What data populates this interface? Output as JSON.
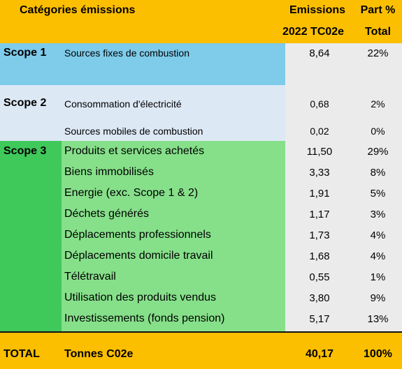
{
  "header": {
    "category_title": "Catégories émissions",
    "emissions_line1": "Emissions",
    "emissions_line2": "2022 TC02e",
    "share_line1": "Part %",
    "share_line2": "Total"
  },
  "scope1": {
    "label": "Scope 1",
    "rows": [
      {
        "label": "Sources fixes de combustion",
        "value": "8,64",
        "share": "22%"
      }
    ]
  },
  "scope2": {
    "label": "Scope 2",
    "rows": [
      {
        "label": "Consommation d'électricité",
        "value": "0,68",
        "share": "2%"
      },
      {
        "label": "Sources mobiles de combustion",
        "value": "0,02",
        "share": "0%"
      }
    ]
  },
  "scope3": {
    "label": "Scope 3",
    "rows": [
      {
        "label": "Produits et services achetés",
        "value": "11,50",
        "share": "29%"
      },
      {
        "label": "Biens immobilisés",
        "value": "3,33",
        "share": "8%"
      },
      {
        "label": "Energie (exc. Scope 1 & 2)",
        "value": "1,91",
        "share": "5%"
      },
      {
        "label": "Déchets générés",
        "value": "1,17",
        "share": "3%"
      },
      {
        "label": "Déplacements professionnels",
        "value": "1,73",
        "share": "4%"
      },
      {
        "label": "Déplacements domicile travail",
        "value": "1,68",
        "share": "4%"
      },
      {
        "label": "Télétravail",
        "value": "0,55",
        "share": "1%"
      },
      {
        "label": "Utilisation des produits vendus",
        "value": "3,80",
        "share": "9%"
      },
      {
        "label": "Investissements (fonds pension)",
        "value": "5,17",
        "share": "13%"
      }
    ]
  },
  "total": {
    "label": "TOTAL",
    "unit": "Tonnes C02e",
    "value": "40,17",
    "share": "100%"
  },
  "colors": {
    "header": "#fcbf00",
    "scope1": "#7ecbea",
    "scope2": "#dde8f5",
    "scope3_strong": "#3fc95a",
    "scope3_light": "#86e08a",
    "value_column": "#ebebeb"
  }
}
